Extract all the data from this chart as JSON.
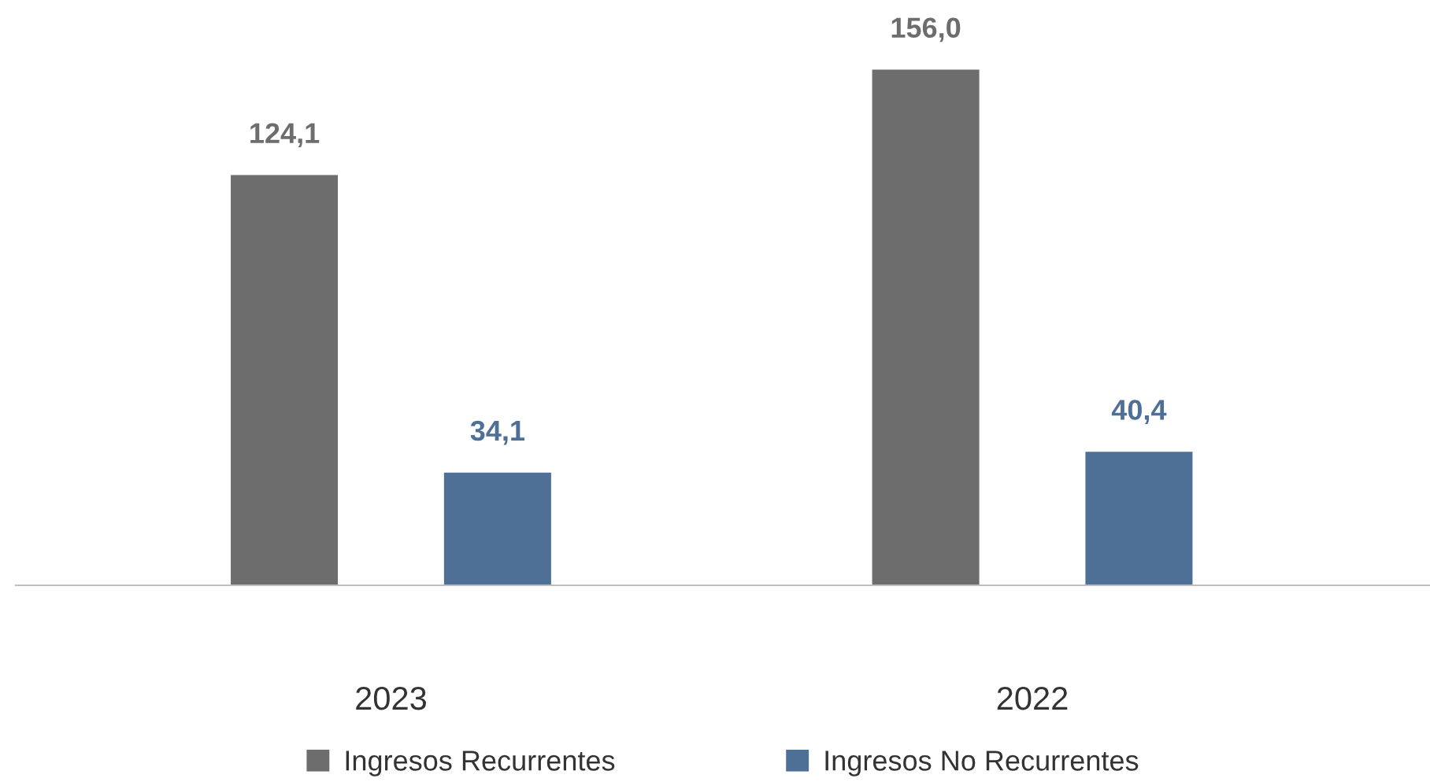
{
  "chart_data": {
    "type": "bar",
    "categories": [
      "2023",
      "2022"
    ],
    "series": [
      {
        "name": "Ingresos Recurrentes",
        "color": "#6d6d6d",
        "values": [
          124.1,
          156.0
        ],
        "value_labels": [
          "124,1",
          "156,0"
        ]
      },
      {
        "name": "Ingresos No Recurrentes",
        "color": "#4e7096",
        "values": [
          34.1,
          40.4
        ],
        "value_labels": [
          "34,1",
          "40,4"
        ]
      }
    ],
    "legend": "bottom",
    "grid": false
  }
}
